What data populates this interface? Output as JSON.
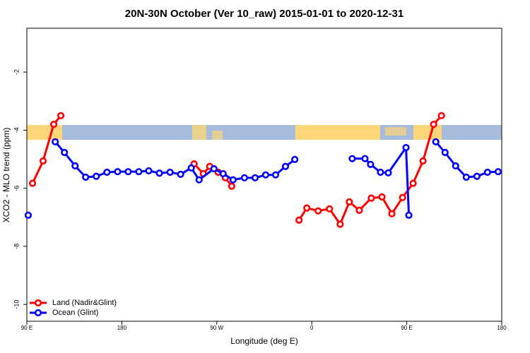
{
  "chart_data": {
    "type": "line",
    "title": "20N-30N October (Ver 10_raw)   2015-01-01 to 2020-12-31",
    "x_label": "Longitude (deg E)",
    "y_label": "XCO2 - MLO trend (ppm)",
    "xlim": [
      90,
      540
    ],
    "xticks": [
      {
        "value": 90,
        "label": "90 E"
      },
      {
        "value": 180,
        "label": "180"
      },
      {
        "value": 270,
        "label": "90 W"
      },
      {
        "value": 360,
        "label": "0"
      },
      {
        "value": 450,
        "label": "90 E"
      },
      {
        "value": 540,
        "label": "180"
      }
    ],
    "ylim": [
      -10.58,
      -0.49
    ],
    "yticks": [
      -10,
      -8,
      -6,
      -4,
      -2
    ],
    "legend": "bottom-left",
    "series": [
      {
        "name": "Land (Nadir&Glint)",
        "color": "#ff0000",
        "x": [
          95.4,
          105.4,
          115.5,
          122.2,
          null,
          248.5,
          257.2,
          263.3,
          271.3,
          278.1,
          284.1,
          null,
          347.9,
          355.3,
          366.0,
          376.8,
          386.9,
          395.6,
          405.0,
          416.4,
          426.5,
          435.9,
          446.0,
          456.0,
          465.4,
          475.5,
          482.9
        ],
        "values": [
          -5.83,
          -5.06,
          -3.8,
          -3.5,
          null,
          -5.16,
          -5.5,
          -5.25,
          -5.45,
          -5.64,
          -5.93,
          null,
          -7.1,
          -6.68,
          -6.78,
          -6.71,
          -7.24,
          -6.47,
          -6.76,
          -6.34,
          -6.3,
          -6.88,
          -6.32,
          -5.83,
          -5.06,
          -3.8,
          -3.5
        ]
      },
      {
        "name": "Ocean (Glint)",
        "color": "#0000ff",
        "x": [
          91.3,
          null,
          116.9,
          125.6,
          135.7,
          145.7,
          155.8,
          165.9,
          176.0,
          186.0,
          196.1,
          205.5,
          215.6,
          225.7,
          235.7,
          245.8,
          253.2,
          267.3,
          276.0,
          285.4,
          296.2,
          306.3,
          316.3,
          325.7,
          335.1,
          343.9,
          null,
          398.3,
          410.4,
          415.7,
          425.1,
          432.5,
          449.3,
          452.0,
          null,
          477.5,
          486.3,
          496.3,
          506.4,
          516.5,
          526.5,
          536.6
        ],
        "values": [
          -6.93,
          null,
          -4.4,
          -4.77,
          -5.23,
          -5.62,
          -5.59,
          -5.45,
          -5.43,
          -5.43,
          -5.43,
          -5.4,
          -5.48,
          -5.45,
          -5.52,
          -5.3,
          -5.71,
          -5.33,
          -5.5,
          -5.71,
          -5.64,
          -5.64,
          -5.54,
          -5.54,
          -5.25,
          -5.01,
          null,
          -4.98,
          -4.98,
          -5.18,
          -5.45,
          -5.47,
          -4.6,
          -6.93,
          null,
          -4.4,
          -4.77,
          -5.23,
          -5.62,
          -5.59,
          -5.45,
          -5.43
        ]
      }
    ]
  }
}
